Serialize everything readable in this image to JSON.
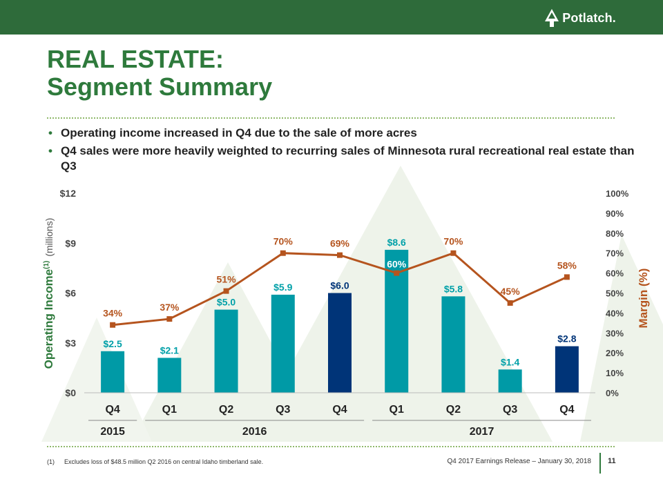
{
  "header": {
    "logo_text": "Potlatch.",
    "title_line1": "REAL ESTATE:",
    "title_line2": "Segment Summary"
  },
  "bullets": [
    "Operating income increased in Q4 due to the sale of more acres",
    "Q4 sales were more heavily weighted to recurring sales of Minnesota rural recreational real estate than Q3"
  ],
  "chart_data": {
    "type": "bar",
    "title": "",
    "categories": [
      "Q4",
      "Q1",
      "Q2",
      "Q3",
      "Q4",
      "Q1",
      "Q2",
      "Q3",
      "Q4"
    ],
    "year_groups": [
      {
        "label": "2015",
        "from": 0,
        "to": 0
      },
      {
        "label": "2016",
        "from": 1,
        "to": 4
      },
      {
        "label": "2017",
        "from": 5,
        "to": 8
      }
    ],
    "series": [
      {
        "name": "Operating Income",
        "axis": "left",
        "values": [
          2.5,
          2.1,
          5.0,
          5.9,
          6.0,
          8.6,
          5.8,
          1.4,
          2.8
        ],
        "labels": [
          "$2.5",
          "$2.1",
          "$5.0",
          "$5.9",
          "$6.0",
          "$8.6",
          "$5.8",
          "$1.4",
          "$2.8"
        ],
        "highlight_indices": [
          4,
          8
        ]
      },
      {
        "name": "Margin",
        "axis": "right",
        "type": "line",
        "values": [
          34,
          37,
          51,
          70,
          69,
          60,
          70,
          45,
          58
        ],
        "labels": [
          "34%",
          "37%",
          "51%",
          "70%",
          "69%",
          "60%",
          "70%",
          "45%",
          "58%"
        ]
      }
    ],
    "ylabel": "Operating Income",
    "ylabel_superscript": "(1)",
    "ylabel_unit": "(millions)",
    "ylim": [
      0,
      12
    ],
    "yticks": [
      "$0",
      "$3",
      "$6",
      "$9",
      "$12"
    ],
    "y2label": "Margin (%)",
    "y2lim": [
      0,
      100
    ],
    "y2ticks": [
      "0%",
      "10%",
      "20%",
      "30%",
      "40%",
      "50%",
      "60%",
      "70%",
      "80%",
      "90%",
      "100%"
    ],
    "colors": {
      "bar": "#009aa6",
      "bar_highlight": "#003478",
      "line": "#b5541e",
      "bar_label": "#00a0a8",
      "bar_label_highlight": "#003478",
      "line_label": "#b5541e",
      "axis_title": "#2e7a3c"
    }
  },
  "footer": {
    "footnote_marker": "(1)",
    "footnote_text": "Excludes loss of $48.5 million  Q2 2016 on central Idaho timberland sale.",
    "release_text": "Q4 2017 Earnings Release – January 30, 2018",
    "page_number": "11"
  },
  "colors": {
    "topbar": "#2e6b3a",
    "title": "#2e7a3c",
    "background_trees": "#eef3ea"
  }
}
